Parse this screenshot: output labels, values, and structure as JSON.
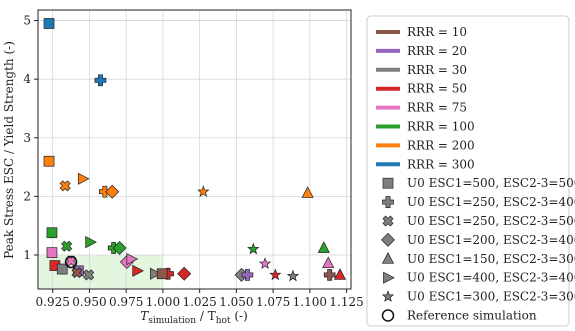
{
  "chart_data": {
    "type": "scatter",
    "xlabel_main": "T",
    "xlabel_sub1": "simulation",
    "xlabel_mid": " / T",
    "xlabel_sub2": "hot",
    "xlabel_tail": " (-)",
    "ylabel": "Peak Stress ESC / Yield Strength (-)",
    "xlim": [
      0.915,
      1.128
    ],
    "ylim": [
      0.42,
      5.18
    ],
    "xticks": [
      "0.925",
      "0.950",
      "0.975",
      "1.000",
      "1.025",
      "1.050",
      "1.075",
      "1.100",
      "1.125"
    ],
    "yticks": [
      "1",
      "2",
      "3",
      "4",
      "5"
    ],
    "grid": true,
    "legend_position": "right",
    "highlight_region": {
      "x": [
        0.915,
        1.0
      ],
      "y": [
        0.42,
        1.0
      ],
      "color": "#e3f7df"
    },
    "rrr_series": [
      {
        "name": "RRR = 10",
        "color": "#8c564b"
      },
      {
        "name": "RRR = 20",
        "color": "#9467bd"
      },
      {
        "name": "RRR = 30",
        "color": "#7f7f7f"
      },
      {
        "name": "RRR = 50",
        "color": "#d62728"
      },
      {
        "name": "RRR = 75",
        "color": "#e377c2"
      },
      {
        "name": "RRR = 100",
        "color": "#2ca02c"
      },
      {
        "name": "RRR = 200",
        "color": "#ff7f0e"
      },
      {
        "name": "RRR = 300",
        "color": "#1f77b4"
      }
    ],
    "marker_legend": [
      {
        "marker": "square",
        "label": "U0 ESC1=500, ESC2-3=500"
      },
      {
        "marker": "plus",
        "label": "U0 ESC1=250, ESC2-3=400"
      },
      {
        "marker": "x",
        "label": "U0 ESC1=250, ESC2-3=500"
      },
      {
        "marker": "diamond",
        "label": "U0 ESC1=200, ESC2-3=400"
      },
      {
        "marker": "triangle-up",
        "label": "U0 ESC1=150, ESC2-3=300"
      },
      {
        "marker": "triangle-right",
        "label": "U0 ESC1=400, ESC2-3=400"
      },
      {
        "marker": "star",
        "label": "U0 ESC1=300, ESC2-3=300"
      },
      {
        "marker": "circle",
        "label": "Reference simulation"
      }
    ],
    "points": [
      {
        "x": 0.9225,
        "y": 4.95,
        "marker": "square",
        "color": "#1f77b4"
      },
      {
        "x": 0.9575,
        "y": 3.98,
        "marker": "plus",
        "color": "#1f77b4"
      },
      {
        "x": 0.9225,
        "y": 2.6,
        "marker": "square",
        "color": "#ff7f0e"
      },
      {
        "x": 0.9335,
        "y": 2.18,
        "marker": "x",
        "color": "#ff7f0e"
      },
      {
        "x": 0.9455,
        "y": 2.3,
        "marker": "triangle-right",
        "color": "#ff7f0e"
      },
      {
        "x": 0.9605,
        "y": 2.08,
        "marker": "plus",
        "color": "#ff7f0e"
      },
      {
        "x": 0.9655,
        "y": 2.08,
        "marker": "diamond",
        "color": "#ff7f0e"
      },
      {
        "x": 1.0275,
        "y": 2.08,
        "marker": "star",
        "color": "#ff7f0e"
      },
      {
        "x": 1.0985,
        "y": 2.06,
        "marker": "triangle-up",
        "color": "#ff7f0e"
      },
      {
        "x": 0.9245,
        "y": 1.38,
        "marker": "square",
        "color": "#2ca02c"
      },
      {
        "x": 0.9345,
        "y": 1.15,
        "marker": "x",
        "color": "#2ca02c"
      },
      {
        "x": 0.9505,
        "y": 1.22,
        "marker": "triangle-right",
        "color": "#2ca02c"
      },
      {
        "x": 0.9665,
        "y": 1.12,
        "marker": "plus",
        "color": "#2ca02c"
      },
      {
        "x": 0.9705,
        "y": 1.12,
        "marker": "diamond",
        "color": "#2ca02c"
      },
      {
        "x": 1.0615,
        "y": 1.1,
        "marker": "star",
        "color": "#2ca02c"
      },
      {
        "x": 1.1095,
        "y": 1.12,
        "marker": "triangle-up",
        "color": "#2ca02c"
      },
      {
        "x": 0.9245,
        "y": 1.04,
        "marker": "square",
        "color": "#e377c2"
      },
      {
        "x": 0.9375,
        "y": 0.9,
        "marker": "x",
        "color": "#e377c2"
      },
      {
        "x": 0.9755,
        "y": 0.88,
        "marker": "diamond",
        "color": "#e377c2"
      },
      {
        "x": 0.9785,
        "y": 0.93,
        "marker": "triangle-right",
        "color": "#e377c2"
      },
      {
        "x": 1.0695,
        "y": 0.85,
        "marker": "star",
        "color": "#e377c2"
      },
      {
        "x": 1.1125,
        "y": 0.86,
        "marker": "triangle-up",
        "color": "#e377c2"
      },
      {
        "x": 0.9265,
        "y": 0.82,
        "marker": "square",
        "color": "#d62728"
      },
      {
        "x": 0.9825,
        "y": 0.73,
        "marker": "triangle-right",
        "color": "#d62728"
      },
      {
        "x": 1.0035,
        "y": 0.68,
        "marker": "plus",
        "color": "#d62728"
      },
      {
        "x": 1.0145,
        "y": 0.68,
        "marker": "diamond",
        "color": "#d62728"
      },
      {
        "x": 1.0765,
        "y": 0.66,
        "marker": "star",
        "color": "#d62728"
      },
      {
        "x": 1.1205,
        "y": 0.66,
        "marker": "triangle-up",
        "color": "#d62728"
      },
      {
        "x": 0.9315,
        "y": 0.76,
        "marker": "square",
        "color": "#7f7f7f"
      },
      {
        "x": 0.9495,
        "y": 0.66,
        "marker": "x",
        "color": "#7f7f7f"
      },
      {
        "x": 0.9945,
        "y": 0.68,
        "marker": "triangle-right",
        "color": "#7f7f7f"
      },
      {
        "x": 1.0535,
        "y": 0.66,
        "marker": "diamond",
        "color": "#7f7f7f"
      },
      {
        "x": 1.0885,
        "y": 0.64,
        "marker": "star",
        "color": "#7f7f7f"
      },
      {
        "x": 0.9425,
        "y": 0.73,
        "marker": "square",
        "color": "#9467bd"
      },
      {
        "x": 1.0575,
        "y": 0.66,
        "marker": "plus",
        "color": "#9467bd"
      },
      {
        "x": 1.1135,
        "y": 0.66,
        "marker": "plus",
        "color": "#8c564b"
      },
      {
        "x": 0.9995,
        "y": 0.68,
        "marker": "square",
        "color": "#8c564b"
      },
      {
        "x": 0.9415,
        "y": 0.7,
        "marker": "x",
        "color": "#8c564b"
      },
      {
        "x": 0.9375,
        "y": 0.88,
        "marker": "circle",
        "color": "#8c564b"
      }
    ]
  }
}
